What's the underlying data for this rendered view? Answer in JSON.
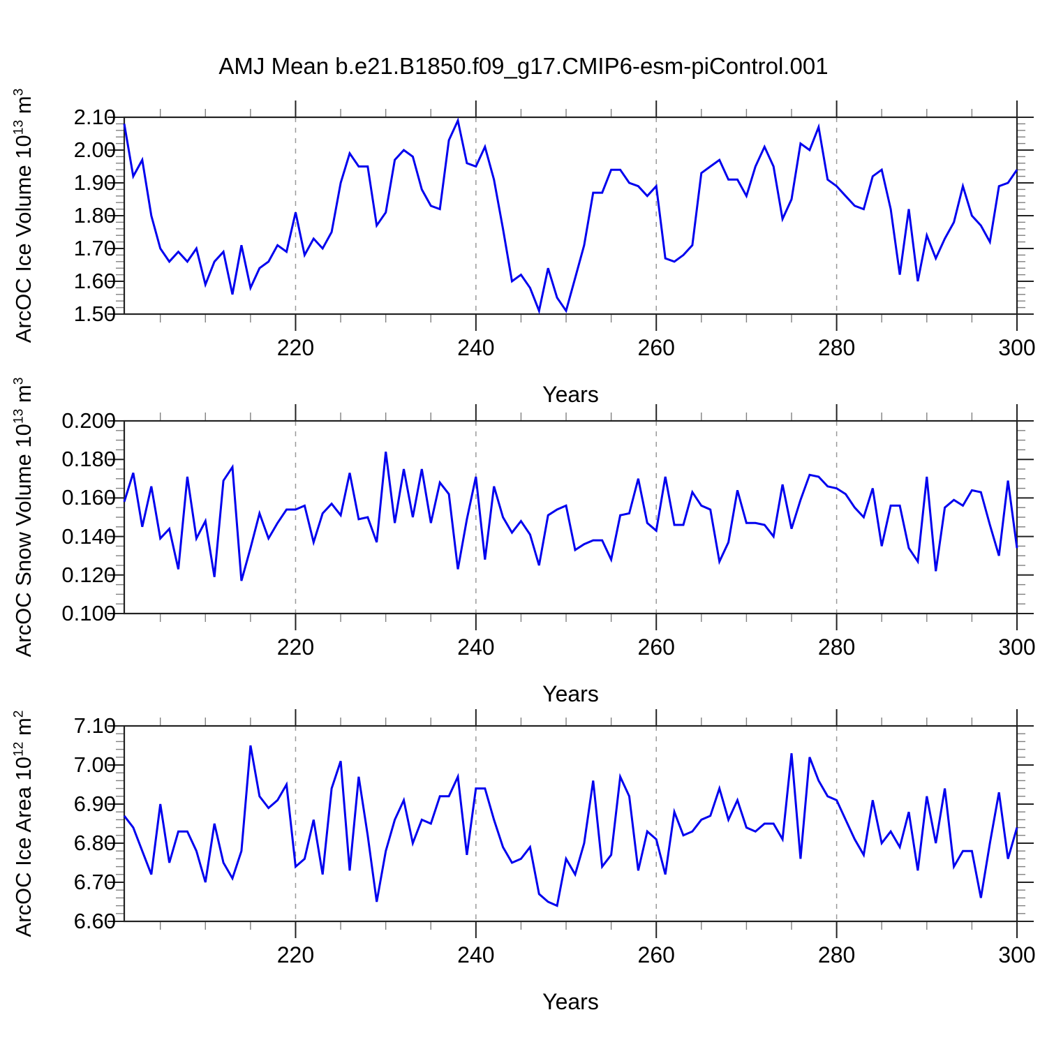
{
  "title": "AMJ Mean b.e21.B1850.f09_g17.CMIP6-esm-piControl.001",
  "colors": {
    "series": "#0000EE",
    "frame": "#222222",
    "minor_tick": "#808080",
    "gridline": "#999999",
    "text": "#000000"
  },
  "chart_data": [
    {
      "type": "line",
      "ylabel": "ArcOC Ice Volume 10¹³ m³",
      "ylabel_parts": {
        "base": "ArcOC Ice Volume 10",
        "sup1": "13",
        "mid": " m",
        "sup2": "3"
      },
      "xlabel": "Years",
      "ylim": [
        1.5,
        2.1
      ],
      "y_tick_values": [
        1.5,
        1.6,
        1.7,
        1.8,
        1.9,
        2.0,
        2.1
      ],
      "y_tick_labels": [
        "1.50",
        "1.60",
        "1.70",
        "1.80",
        "1.90",
        "2.00",
        "2.10"
      ],
      "y_minor_step": 0.02,
      "xlim": [
        201,
        300
      ],
      "x_tick_values": [
        220,
        240,
        260,
        280,
        300
      ],
      "x_tick_labels": [
        "220",
        "240",
        "260",
        "280",
        "300"
      ],
      "x_minor_step": 5,
      "grid_x": [
        220,
        240,
        260,
        280
      ],
      "x_start": 201,
      "x_step": 1,
      "y": [
        2.08,
        1.92,
        1.97,
        1.8,
        1.7,
        1.66,
        1.69,
        1.66,
        1.7,
        1.59,
        1.66,
        1.69,
        1.56,
        1.71,
        1.58,
        1.64,
        1.66,
        1.71,
        1.69,
        1.81,
        1.68,
        1.73,
        1.7,
        1.75,
        1.9,
        1.99,
        1.95,
        1.95,
        1.77,
        1.81,
        1.97,
        2.0,
        1.98,
        1.88,
        1.83,
        1.82,
        2.03,
        2.09,
        1.96,
        1.95,
        2.01,
        1.91,
        1.76,
        1.6,
        1.62,
        1.58,
        1.51,
        1.64,
        1.55,
        1.51,
        1.61,
        1.71,
        1.87,
        1.87,
        1.94,
        1.94,
        1.9,
        1.89,
        1.86,
        1.89,
        1.67,
        1.66,
        1.68,
        1.71,
        1.93,
        1.95,
        1.97,
        1.91,
        1.91,
        1.86,
        1.95,
        2.01,
        1.95,
        1.79,
        1.85,
        2.02,
        2.0,
        2.07,
        1.91,
        1.89,
        1.86,
        1.83,
        1.82,
        1.92,
        1.94,
        1.82,
        1.62,
        1.82,
        1.6,
        1.74,
        1.67,
        1.73,
        1.78,
        1.89,
        1.8,
        1.77,
        1.72,
        1.89,
        1.9,
        1.94
      ]
    },
    {
      "type": "line",
      "ylabel": "ArcOC Snow Volume 10¹³ m³",
      "ylabel_parts": {
        "base": "ArcOC Snow Volume 10",
        "sup1": "13",
        "mid": " m",
        "sup2": "3"
      },
      "xlabel": "Years",
      "ylim": [
        0.1,
        0.2
      ],
      "y_tick_values": [
        0.1,
        0.12,
        0.14,
        0.16,
        0.18,
        0.2
      ],
      "y_tick_labels": [
        "0.100",
        "0.120",
        "0.140",
        "0.160",
        "0.180",
        "0.200"
      ],
      "y_minor_step": 0.005,
      "xlim": [
        201,
        300
      ],
      "x_tick_values": [
        220,
        240,
        260,
        280,
        300
      ],
      "x_tick_labels": [
        "220",
        "240",
        "260",
        "280",
        "300"
      ],
      "x_minor_step": 5,
      "grid_x": [
        220,
        240,
        260,
        280
      ],
      "x_start": 201,
      "x_step": 1,
      "y": [
        0.158,
        0.173,
        0.145,
        0.166,
        0.139,
        0.144,
        0.123,
        0.171,
        0.139,
        0.148,
        0.119,
        0.169,
        0.176,
        0.117,
        0.134,
        0.152,
        0.139,
        0.147,
        0.154,
        0.154,
        0.156,
        0.137,
        0.152,
        0.157,
        0.151,
        0.173,
        0.149,
        0.15,
        0.137,
        0.184,
        0.147,
        0.175,
        0.15,
        0.175,
        0.147,
        0.168,
        0.162,
        0.123,
        0.149,
        0.171,
        0.128,
        0.166,
        0.15,
        0.142,
        0.148,
        0.141,
        0.125,
        0.151,
        0.154,
        0.156,
        0.133,
        0.136,
        0.138,
        0.138,
        0.128,
        0.151,
        0.152,
        0.17,
        0.147,
        0.143,
        0.171,
        0.146,
        0.146,
        0.163,
        0.156,
        0.154,
        0.127,
        0.137,
        0.164,
        0.147,
        0.147,
        0.146,
        0.14,
        0.167,
        0.144,
        0.159,
        0.172,
        0.171,
        0.166,
        0.165,
        0.162,
        0.155,
        0.15,
        0.165,
        0.135,
        0.156,
        0.156,
        0.134,
        0.127,
        0.171,
        0.122,
        0.155,
        0.159,
        0.156,
        0.164,
        0.163,
        0.146,
        0.13,
        0.169,
        0.134
      ]
    },
    {
      "type": "line",
      "ylabel": "ArcOC Ice Area 10¹² m²",
      "ylabel_parts": {
        "base": "ArcOC Ice Area 10",
        "sup1": "12",
        "mid": " m",
        "sup2": "2"
      },
      "xlabel": "Years",
      "ylim": [
        6.6,
        7.1
      ],
      "y_tick_values": [
        6.6,
        6.7,
        6.8,
        6.9,
        7.0,
        7.1
      ],
      "y_tick_labels": [
        "6.60",
        "6.70",
        "6.80",
        "6.90",
        "7.00",
        "7.10"
      ],
      "y_minor_step": 0.02,
      "xlim": [
        201,
        300
      ],
      "x_tick_values": [
        220,
        240,
        260,
        280,
        300
      ],
      "x_tick_labels": [
        "220",
        "240",
        "260",
        "280",
        "300"
      ],
      "x_minor_step": 5,
      "grid_x": [
        220,
        240,
        260,
        280
      ],
      "x_start": 201,
      "x_step": 1,
      "y": [
        6.87,
        6.84,
        6.78,
        6.72,
        6.9,
        6.75,
        6.83,
        6.83,
        6.78,
        6.7,
        6.85,
        6.75,
        6.71,
        6.78,
        7.05,
        6.92,
        6.89,
        6.91,
        6.95,
        6.74,
        6.76,
        6.86,
        6.72,
        6.94,
        7.01,
        6.73,
        6.97,
        6.82,
        6.65,
        6.78,
        6.86,
        6.91,
        6.8,
        6.86,
        6.85,
        6.92,
        6.92,
        6.97,
        6.77,
        6.94,
        6.94,
        6.86,
        6.79,
        6.75,
        6.76,
        6.79,
        6.67,
        6.65,
        6.64,
        6.76,
        6.72,
        6.8,
        6.96,
        6.74,
        6.77,
        6.97,
        6.92,
        6.73,
        6.83,
        6.81,
        6.72,
        6.88,
        6.82,
        6.83,
        6.86,
        6.87,
        6.94,
        6.86,
        6.91,
        6.84,
        6.83,
        6.85,
        6.85,
        6.81,
        7.03,
        6.76,
        7.02,
        6.96,
        6.92,
        6.91,
        6.86,
        6.81,
        6.77,
        6.91,
        6.8,
        6.83,
        6.79,
        6.88,
        6.73,
        6.92,
        6.8,
        6.94,
        6.74,
        6.78,
        6.78,
        6.66,
        6.8,
        6.93,
        6.76,
        6.84
      ]
    }
  ]
}
